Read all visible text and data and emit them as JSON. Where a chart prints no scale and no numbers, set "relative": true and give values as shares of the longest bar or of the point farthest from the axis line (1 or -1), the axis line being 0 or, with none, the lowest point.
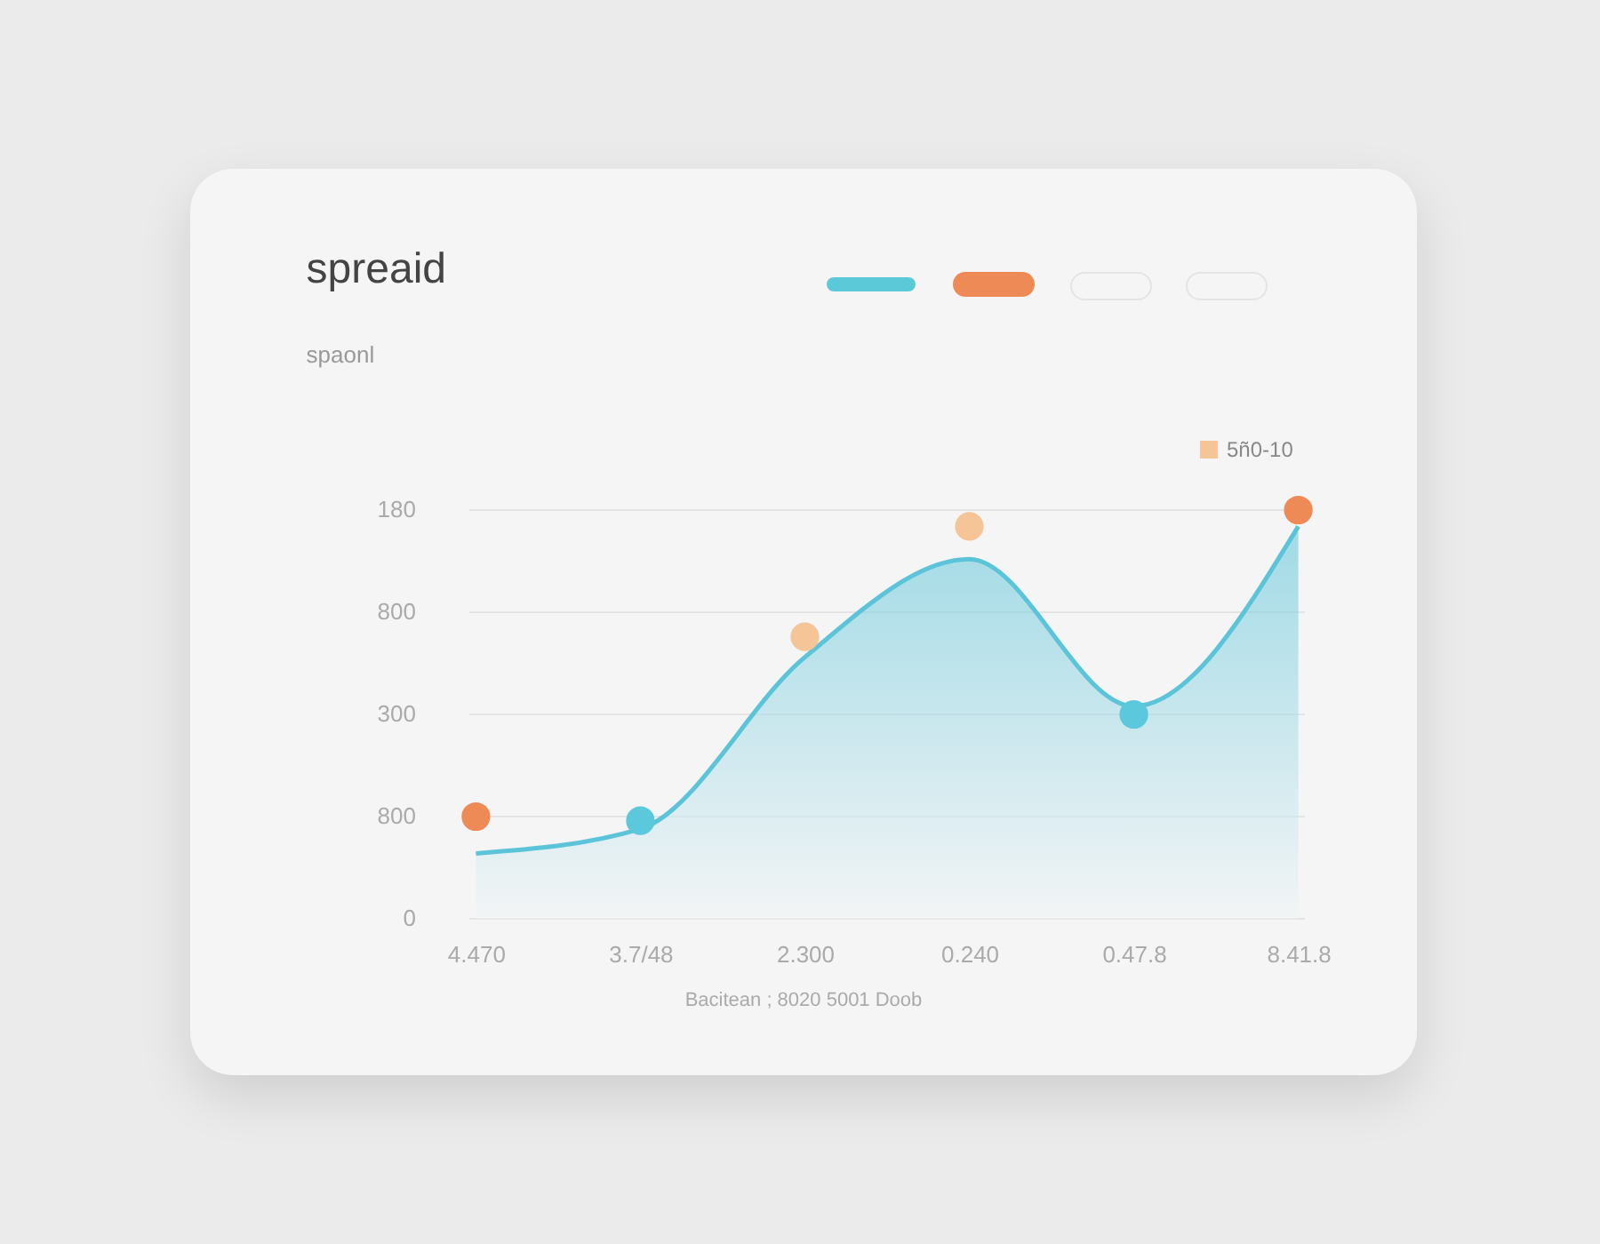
{
  "chart_data": {
    "type": "area",
    "title": "spreaid",
    "subtitle": "spaonl",
    "annotations": [
      "180",
      "800",
      "300",
      "800",
      "0",
      "Bacitean ; 8020 5001 Doob"
    ],
    "categories": [
      "4.470",
      "3.7/48",
      "2.300",
      "0.240",
      "0.47.8",
      "8.41.8"
    ],
    "relative": true,
    "grid": "y",
    "legend": "top right",
    "series": [
      {
        "color": "#5bc4d9",
        "values": [
          0.16,
          0.22,
          0.64,
          0.88,
          0.52,
          0.96
        ]
      },
      {
        "type": "scatter",
        "marker": "circle",
        "x": [
          "4.470",
          "3.7/48",
          "0.47.8",
          "8.41.8"
        ],
        "colors": [
          "#ee8a55",
          "#5bc8dc",
          "#5bc8dc",
          "#ee8a55"
        ],
        "values": [
          0.25,
          0.24,
          0.5,
          1
        ]
      },
      {
        "type": "scatter",
        "marker": "circle",
        "name": "5ñ0-10",
        "color": "#f5c497",
        "x": [
          "2.300",
          "0.240"
        ],
        "values": [
          0.69,
          0.96
        ]
      }
    ]
  }
}
